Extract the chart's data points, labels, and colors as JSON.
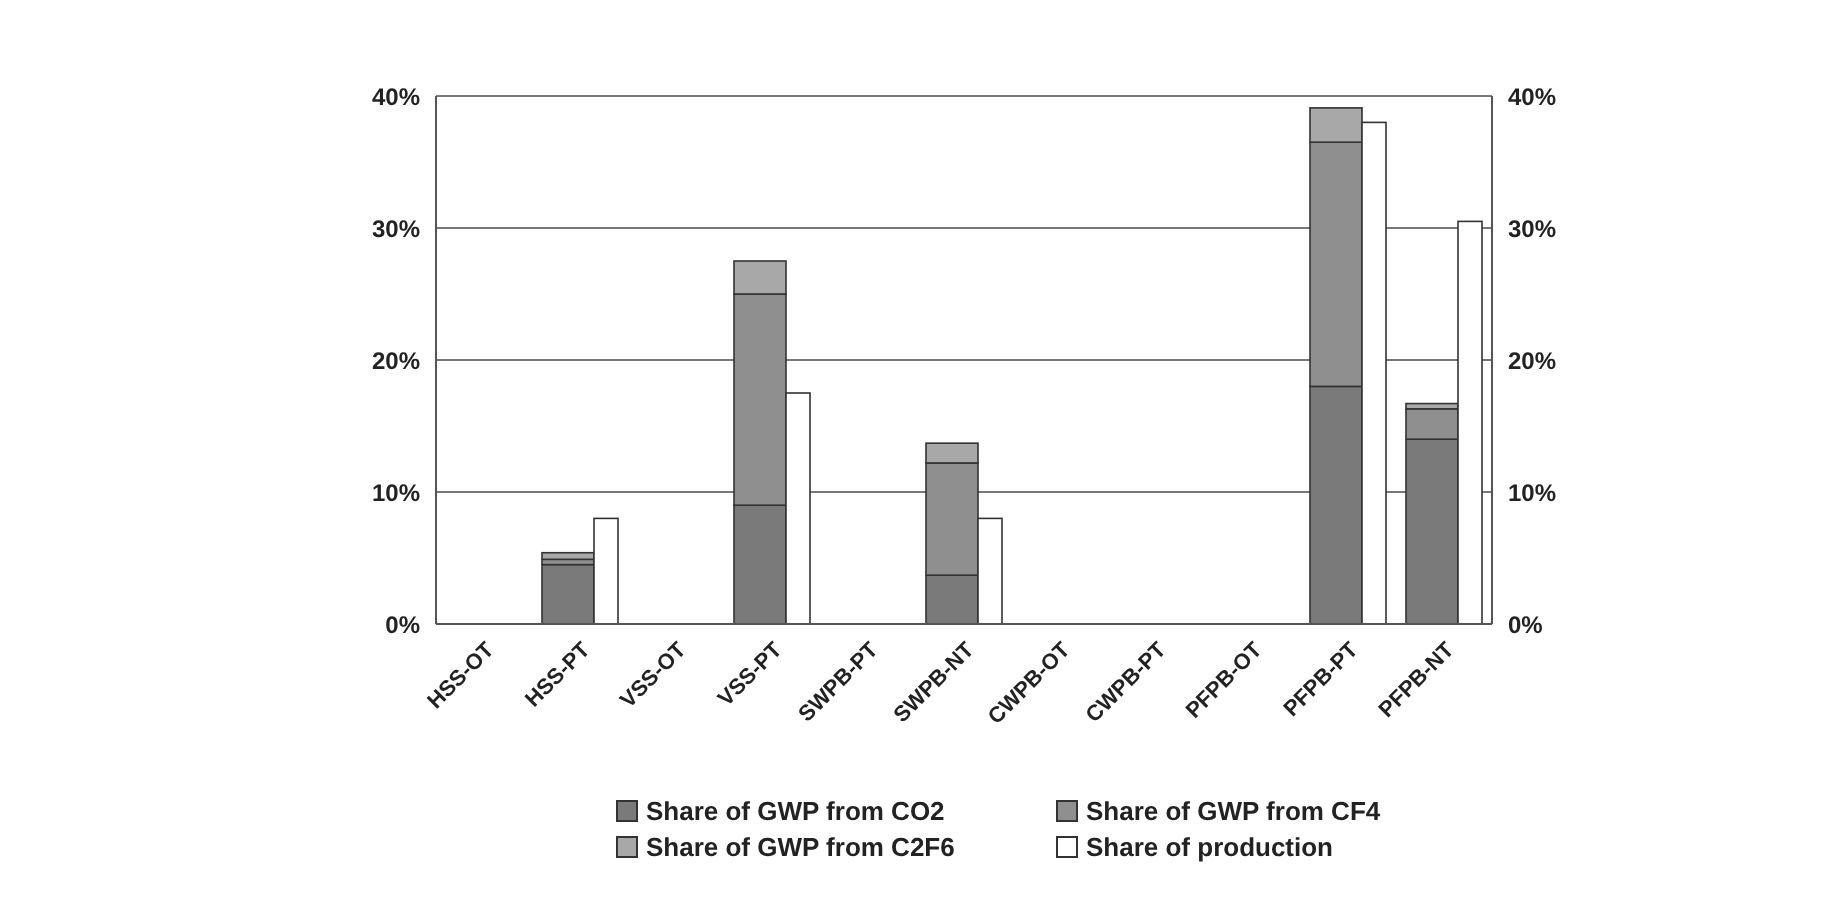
{
  "chart_data": {
    "type": "bar",
    "stacked": true,
    "categories": [
      "HSS-OT",
      "HSS-PT",
      "VSS-OT",
      "VSS-PT",
      "SWPB-PT",
      "SWPB-NT",
      "CWPB-OT",
      "CWPB-PT",
      "PFPB-OT",
      "PFPB-PT",
      "PFPB-NT"
    ],
    "series": [
      {
        "name": "Share of GWP from CO2",
        "color": "#7a7a7a",
        "values": [
          0,
          4.5,
          0,
          9,
          0,
          3.7,
          0,
          0,
          0,
          18,
          14
        ]
      },
      {
        "name": "Share of GWP from CF4",
        "color": "#8f8f8f",
        "values": [
          0,
          0.4,
          0,
          16,
          0,
          8.5,
          0,
          0,
          0,
          18.5,
          2.3
        ]
      },
      {
        "name": "Share of GWP from C2F6",
        "color": "#a8a8a8",
        "values": [
          0,
          0.5,
          0,
          2.5,
          0,
          1.5,
          0,
          0,
          0,
          2.6,
          0.4
        ]
      },
      {
        "name": "Share of production",
        "color": "#ffffff",
        "values": [
          0,
          8,
          0,
          17.5,
          0,
          8,
          0,
          0,
          0,
          38,
          30.5
        ],
        "axis": "y2"
      }
    ],
    "y2lim": [
      0,
      40
    ],
    "y2ticks": [
      {
        "value": 0,
        "label": "0%"
      },
      {
        "value": 10,
        "label": "10%"
      },
      {
        "value": 20,
        "label": "20%"
      },
      {
        "value": 30,
        "label": "30%"
      },
      {
        "value": 40,
        "label": "40%"
      }
    ],
    "ylim": [
      0,
      40
    ],
    "yticks": [
      {
        "value": 0,
        "label": "0%"
      },
      {
        "value": 10,
        "label": "10%"
      },
      {
        "value": 20,
        "label": "20%"
      },
      {
        "value": 30,
        "label": "30%"
      },
      {
        "value": 40,
        "label": "40%"
      }
    ],
    "grid": "y",
    "legend": "bottom"
  }
}
